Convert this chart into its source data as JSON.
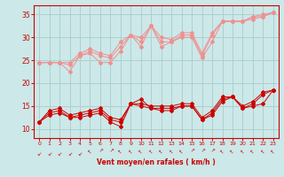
{
  "background_color": "#cce8e8",
  "grid_color": "#aacccc",
  "xlabel": "Vent moyen/en rafales ( km/h )",
  "xlabel_color": "#cc0000",
  "tick_color": "#cc0000",
  "axis_color": "#cc0000",
  "ylim": [
    8,
    37
  ],
  "xlim": [
    -0.5,
    23.5
  ],
  "yticks": [
    10,
    15,
    20,
    25,
    30,
    35
  ],
  "xticks": [
    0,
    1,
    2,
    3,
    4,
    5,
    6,
    7,
    8,
    9,
    10,
    11,
    12,
    13,
    14,
    15,
    16,
    17,
    18,
    19,
    20,
    21,
    22,
    23
  ],
  "series_upper_light": [
    [
      24.5,
      24.5,
      24.5,
      22.5,
      26.0,
      26.5,
      24.5,
      24.5,
      27.0,
      30.5,
      28.0,
      32.5,
      28.0,
      29.0,
      30.0,
      30.0,
      25.5,
      29.0,
      33.5,
      33.5,
      33.5,
      34.0,
      34.5,
      35.5
    ],
    [
      24.5,
      24.5,
      24.5,
      24.0,
      26.0,
      27.0,
      26.0,
      25.5,
      28.0,
      30.5,
      29.0,
      32.5,
      29.0,
      29.0,
      30.5,
      30.5,
      26.0,
      30.5,
      33.5,
      33.5,
      33.5,
      34.5,
      34.5,
      35.5
    ],
    [
      24.5,
      24.5,
      24.5,
      24.5,
      26.5,
      27.5,
      26.5,
      26.0,
      29.0,
      30.5,
      30.0,
      32.5,
      30.0,
      29.5,
      31.0,
      31.0,
      26.5,
      31.0,
      33.5,
      33.5,
      33.5,
      34.5,
      35.0,
      35.5
    ]
  ],
  "series_lower_dark": [
    [
      11.5,
      13.0,
      13.5,
      12.5,
      12.5,
      13.0,
      13.5,
      11.5,
      10.5,
      15.5,
      16.5,
      14.5,
      14.0,
      14.0,
      15.0,
      15.0,
      12.0,
      13.0,
      16.0,
      17.0,
      14.5,
      15.0,
      15.5,
      18.5
    ],
    [
      11.5,
      13.5,
      14.0,
      12.5,
      13.0,
      13.5,
      14.0,
      12.0,
      11.5,
      15.5,
      15.0,
      14.5,
      14.5,
      14.5,
      15.0,
      15.0,
      12.0,
      13.5,
      16.5,
      17.0,
      14.5,
      15.5,
      17.5,
      18.5
    ],
    [
      11.5,
      14.0,
      14.5,
      13.0,
      13.5,
      14.0,
      14.5,
      12.5,
      12.0,
      15.5,
      15.5,
      15.0,
      15.0,
      15.0,
      15.5,
      15.5,
      12.5,
      14.0,
      17.0,
      17.0,
      15.0,
      16.0,
      18.0,
      18.5
    ]
  ],
  "light_pink": "#f09090",
  "dark_red": "#cc0000",
  "marker": "D",
  "marker_size": 2.0,
  "linewidth": 0.7
}
